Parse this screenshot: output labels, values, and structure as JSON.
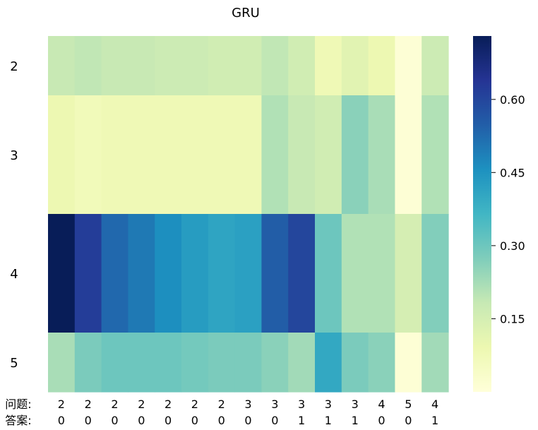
{
  "chart_data": {
    "type": "heatmap",
    "title": "GRU",
    "row_labels": [
      "2",
      "3",
      "4",
      "5"
    ],
    "x_axis_label_rows": [
      "问题:",
      "答案:"
    ],
    "columns": [
      {
        "top": "2",
        "bottom": "0"
      },
      {
        "top": "2",
        "bottom": "0"
      },
      {
        "top": "2",
        "bottom": "0"
      },
      {
        "top": "2",
        "bottom": "0"
      },
      {
        "top": "2",
        "bottom": "0"
      },
      {
        "top": "2",
        "bottom": "0"
      },
      {
        "top": "2",
        "bottom": "0"
      },
      {
        "top": "3",
        "bottom": "0"
      },
      {
        "top": "3",
        "bottom": "0"
      },
      {
        "top": "3",
        "bottom": "1"
      },
      {
        "top": "3",
        "bottom": "1"
      },
      {
        "top": "3",
        "bottom": "1"
      },
      {
        "top": "4",
        "bottom": "0"
      },
      {
        "top": "5",
        "bottom": "0"
      },
      {
        "top": "4",
        "bottom": "1"
      }
    ],
    "row_heights": [
      1,
      2,
      2,
      1
    ],
    "values": [
      [
        0.18,
        0.19,
        0.18,
        0.18,
        0.17,
        0.17,
        0.16,
        0.16,
        0.19,
        0.16,
        0.08,
        0.12,
        0.09,
        0.01,
        0.17
      ],
      [
        0.09,
        0.07,
        0.08,
        0.08,
        0.08,
        0.08,
        0.08,
        0.08,
        0.21,
        0.18,
        0.16,
        0.26,
        0.22,
        0.01,
        0.21
      ],
      [
        0.73,
        0.62,
        0.53,
        0.5,
        0.46,
        0.43,
        0.41,
        0.42,
        0.55,
        0.6,
        0.3,
        0.21,
        0.21,
        0.15,
        0.27
      ],
      [
        0.22,
        0.28,
        0.3,
        0.3,
        0.3,
        0.29,
        0.28,
        0.28,
        0.26,
        0.23,
        0.4,
        0.28,
        0.26,
        0.01,
        0.23
      ]
    ],
    "colorbar": {
      "colormap": "YlGnBu",
      "range": [
        0.0,
        0.73
      ],
      "ticks": [
        0.15,
        0.3,
        0.45,
        0.6
      ],
      "tick_labels": [
        "0.15",
        "0.30",
        "0.45",
        "0.60"
      ]
    },
    "colormap_stops": [
      "#ffffd9",
      "#edf8b1",
      "#c7e9b4",
      "#7fcdbb",
      "#41b6c4",
      "#1d91c0",
      "#225ea8",
      "#253494",
      "#081d58"
    ]
  }
}
